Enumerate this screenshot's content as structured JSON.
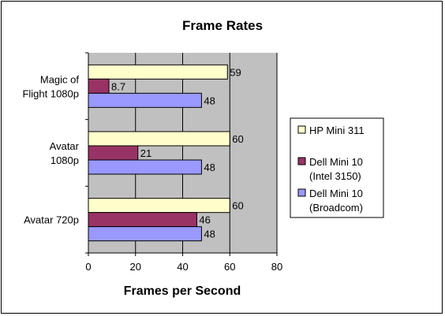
{
  "chart_data": {
    "type": "bar",
    "orientation": "horizontal",
    "title": "Frame Rates",
    "xlabel": "Frames per Second",
    "ylabel": "",
    "xlim": [
      0,
      80
    ],
    "xticks": [
      "0",
      "20",
      "40",
      "60",
      "80"
    ],
    "categories": [
      [
        "Magic of",
        "Flight 1080p"
      ],
      [
        "Avatar",
        "1080p"
      ],
      [
        "Avatar 720p"
      ]
    ],
    "series": [
      {
        "name": [
          "HP Mini 311"
        ],
        "color": "#FFFFCC",
        "values": [
          59,
          60,
          60
        ],
        "labels": [
          "59",
          "60",
          "60"
        ]
      },
      {
        "name": [
          "Dell Mini 10",
          "(Intel 3150)"
        ],
        "color": "#993366",
        "values": [
          8.7,
          21,
          46
        ],
        "labels": [
          "8.7",
          "21",
          "46"
        ]
      },
      {
        "name": [
          "Dell Mini 10",
          "(Broadcom)"
        ],
        "color": "#9999FF",
        "values": [
          48,
          48,
          48
        ],
        "labels": [
          "48",
          "48",
          "48"
        ]
      }
    ],
    "grid": true,
    "plot_background": "#C0C0C0",
    "legend_position": "right"
  }
}
